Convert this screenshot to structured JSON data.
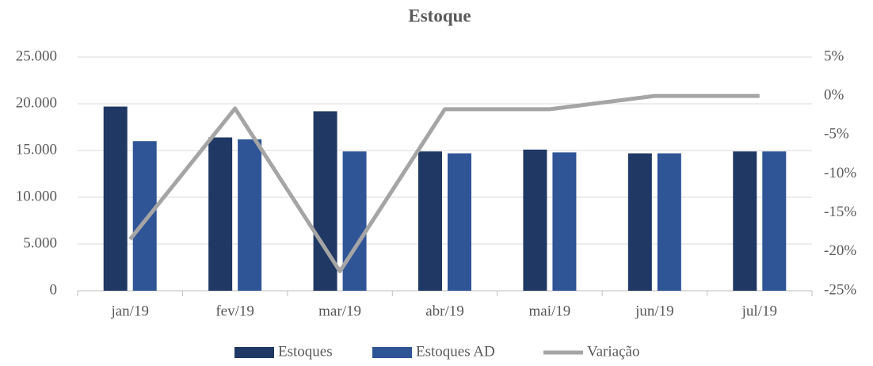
{
  "chart_data": {
    "type": "bar-line",
    "title": "Estoque",
    "categories": [
      "jan/19",
      "fev/19",
      "mar/19",
      "abr/19",
      "mai/19",
      "jun/19",
      "jul/19"
    ],
    "series": [
      {
        "name": "Estoques",
        "type": "bar",
        "color": "#203864",
        "values": [
          19700,
          16400,
          19200,
          14900,
          15100,
          14700,
          14900
        ]
      },
      {
        "name": "Estoques AD",
        "type": "bar",
        "color": "#2f5597",
        "values": [
          16000,
          16200,
          14900,
          14700,
          14800,
          14700,
          14900
        ]
      },
      {
        "name": "Variação",
        "type": "line",
        "axis": "y2",
        "color": "#a5a5a5",
        "values": [
          -18.4,
          -1.6,
          -22.5,
          -1.7,
          -1.7,
          0,
          0
        ]
      }
    ],
    "ylim": [
      0,
      25000
    ],
    "yticks": [
      0,
      {
        "value": 5000,
        "label": "5.000"
      },
      {
        "value": 10000,
        "label": "10.000"
      },
      {
        "value": 15000,
        "label": "15.000"
      },
      {
        "value": 20000,
        "label": "20.000"
      },
      {
        "value": 25000,
        "label": "25.000"
      }
    ],
    "y2lim": [
      -25,
      5
    ],
    "y2ticks": [
      {
        "value": -25,
        "label": "-25%"
      },
      {
        "value": -20,
        "label": "-20%"
      },
      {
        "value": -15,
        "label": "-15%"
      },
      {
        "value": -10,
        "label": "-10%"
      },
      {
        "value": -5,
        "label": "-5%"
      },
      {
        "value": 0,
        "label": "0%"
      },
      {
        "value": 5,
        "label": "5%"
      }
    ],
    "grid": true,
    "legend": "bottom"
  }
}
